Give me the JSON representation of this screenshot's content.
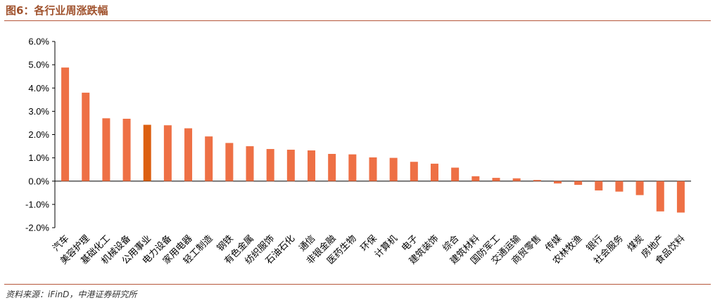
{
  "header": {
    "title": "图6：各行业周涨跌幅"
  },
  "footer": {
    "source": "资料来源：iFinD，中港证券研究所"
  },
  "chart_data": {
    "type": "bar",
    "title": "图6：各行业周涨跌幅",
    "xlabel": "",
    "ylabel": "",
    "ylim": [
      -2.0,
      6.0
    ],
    "yticks": [
      "6.0%",
      "5.0%",
      "4.0%",
      "3.0%",
      "2.0%",
      "1.0%",
      "0.0%",
      "-1.0%",
      "-2.0%"
    ],
    "ytick_values": [
      6,
      5,
      4,
      3,
      2,
      1,
      0,
      -1,
      -2
    ],
    "grid": false,
    "bar_color": "#ee7045",
    "highlight_color": "#dc6012",
    "highlight_category": "公用事业",
    "categories": [
      "汽车",
      "美容护理",
      "基础化工",
      "机械设备",
      "公用事业",
      "电力设备",
      "家用电器",
      "轻工制造",
      "钢铁",
      "有色金属",
      "纺织服饰",
      "石油石化",
      "通信",
      "非银金融",
      "医药生物",
      "环保",
      "计算机",
      "电子",
      "建筑装饰",
      "综合",
      "建筑材料",
      "国防军工",
      "交通运输",
      "商贸零售",
      "传媒",
      "农林牧渔",
      "银行",
      "社会服务",
      "煤炭",
      "房地产",
      "食品饮料"
    ],
    "values": [
      4.88,
      3.8,
      2.7,
      2.68,
      2.42,
      2.4,
      2.27,
      1.92,
      1.64,
      1.5,
      1.38,
      1.35,
      1.32,
      1.17,
      1.15,
      1.02,
      1.0,
      0.83,
      0.75,
      0.58,
      0.21,
      0.14,
      0.12,
      0.05,
      -0.1,
      -0.16,
      -0.4,
      -0.45,
      -0.6,
      -1.3,
      -1.35
    ]
  }
}
